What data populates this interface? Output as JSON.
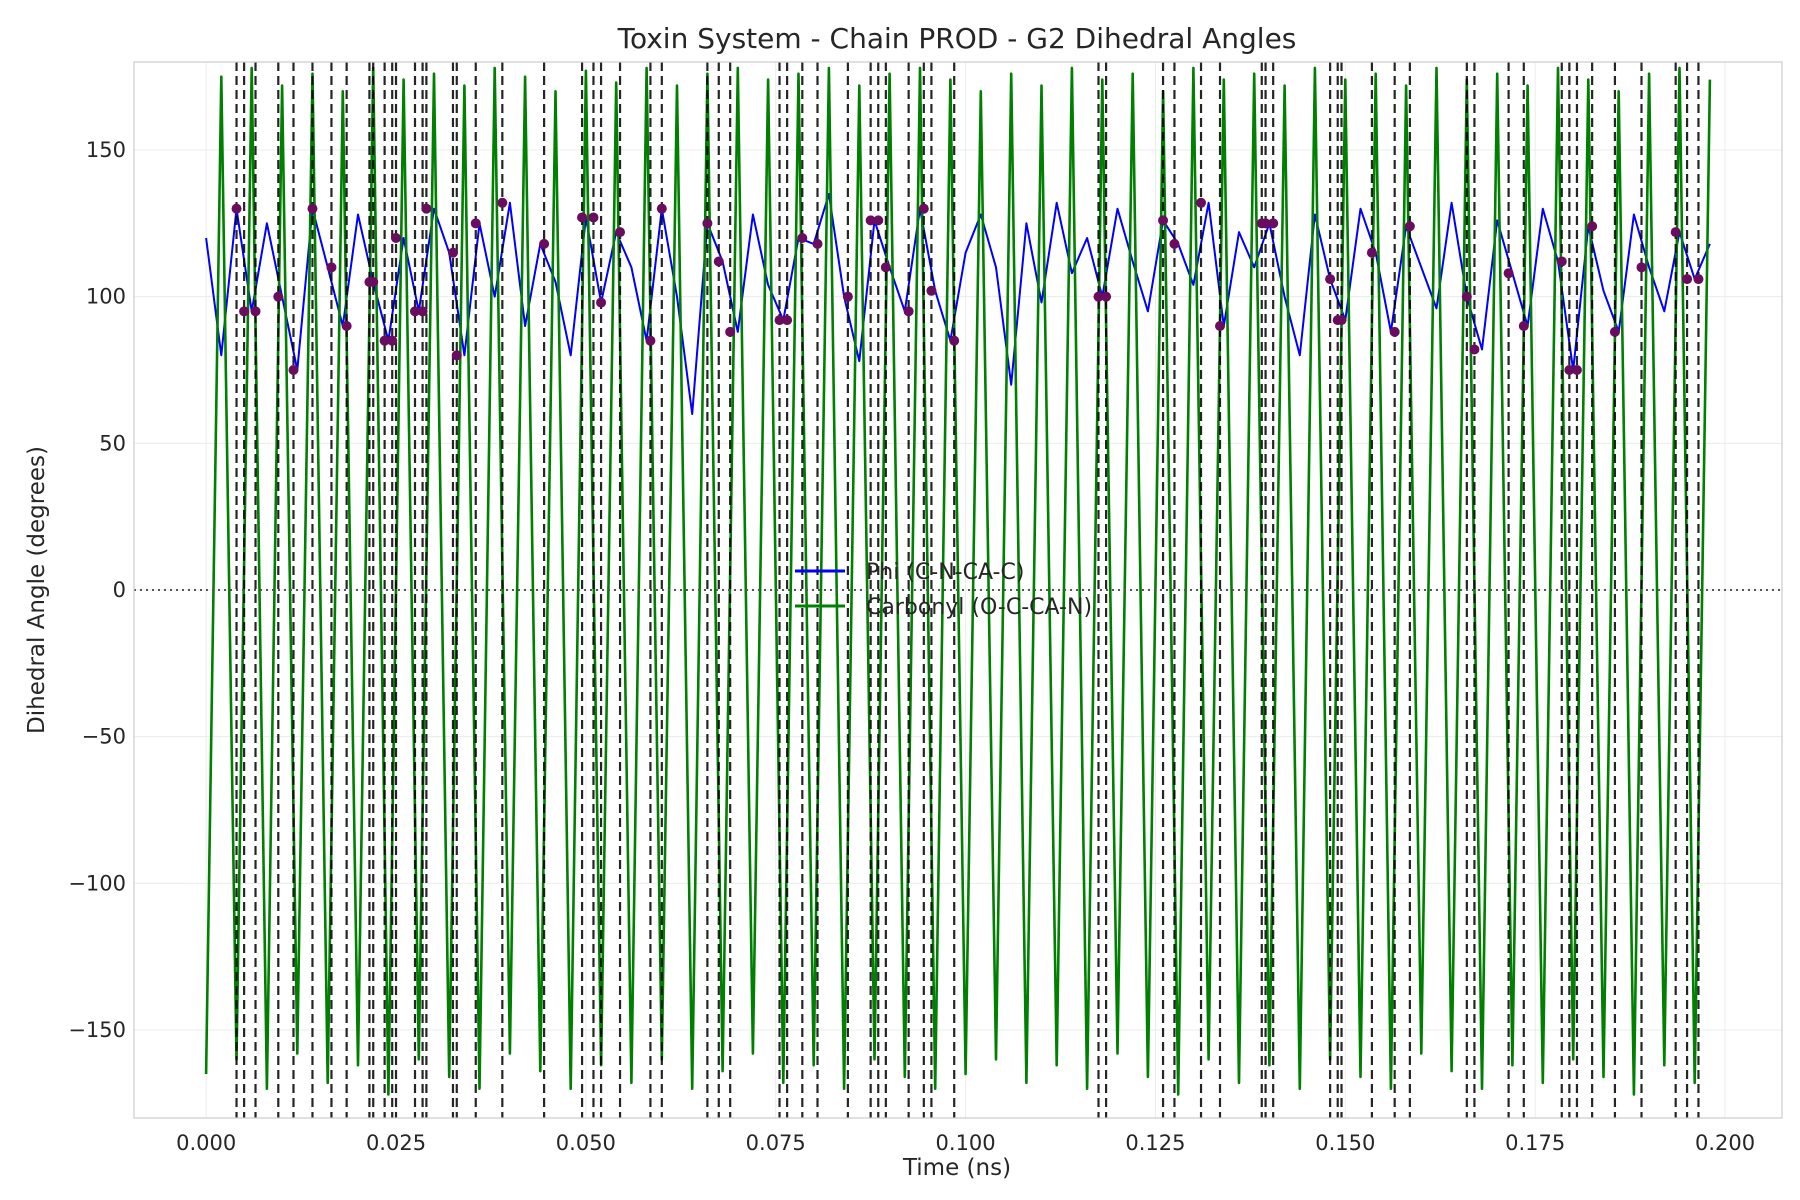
{
  "chart_data": {
    "type": "line",
    "title": "Toxin System - Chain PROD - G2 Dihedral Angles",
    "xlabel": "Time (ns)",
    "ylabel": "Dihedral Angle (degrees)",
    "xlim": [
      -0.0095,
      0.2075
    ],
    "ylim": [
      -180,
      180
    ],
    "xticks": [
      0.0,
      0.025,
      0.05,
      0.075,
      0.1,
      0.125,
      0.15,
      0.175,
      0.2
    ],
    "xtick_labels": [
      "0.000",
      "0.025",
      "0.050",
      "0.075",
      "0.100",
      "0.125",
      "0.150",
      "0.175",
      "0.200"
    ],
    "yticks": [
      -150,
      -100,
      -50,
      0,
      50,
      100,
      150
    ],
    "ytick_labels": [
      "−150",
      "−100",
      "−50",
      "0",
      "50",
      "100",
      "150"
    ],
    "grid": true,
    "legend_position": "center",
    "reference_line": {
      "y": 0,
      "style": "dotted",
      "color": "#555555"
    },
    "colors": {
      "phi": "#0000ff",
      "carbonyl": "#008000",
      "transitions": "#000000",
      "markers": "#6a0d5e"
    },
    "series": [
      {
        "name": "Phi (C-N-CA-C)",
        "color": "#0000ff",
        "x": [
          0.0,
          0.002,
          0.004,
          0.006,
          0.008,
          0.01,
          0.012,
          0.014,
          0.016,
          0.018,
          0.02,
          0.022,
          0.024,
          0.026,
          0.028,
          0.03,
          0.032,
          0.034,
          0.036,
          0.038,
          0.04,
          0.042,
          0.044,
          0.046,
          0.048,
          0.05,
          0.052,
          0.054,
          0.056,
          0.058,
          0.06,
          0.062,
          0.064,
          0.066,
          0.068,
          0.07,
          0.072,
          0.074,
          0.076,
          0.078,
          0.08,
          0.082,
          0.084,
          0.086,
          0.088,
          0.09,
          0.092,
          0.094,
          0.096,
          0.098,
          0.1,
          0.102,
          0.104,
          0.106,
          0.108,
          0.11,
          0.112,
          0.114,
          0.116,
          0.118,
          0.12,
          0.122,
          0.124,
          0.126,
          0.128,
          0.13,
          0.132,
          0.134,
          0.136,
          0.138,
          0.14,
          0.142,
          0.144,
          0.146,
          0.148,
          0.15,
          0.152,
          0.154,
          0.156,
          0.158,
          0.16,
          0.162,
          0.164,
          0.166,
          0.168,
          0.17,
          0.172,
          0.174,
          0.176,
          0.178,
          0.18,
          0.182,
          0.184,
          0.186,
          0.188,
          0.19,
          0.192,
          0.194,
          0.196,
          0.198
        ],
        "y": [
          120,
          80,
          130,
          95,
          125,
          100,
          75,
          130,
          110,
          90,
          128,
          105,
          85,
          120,
          95,
          130,
          115,
          80,
          125,
          100,
          132,
          90,
          118,
          105,
          80,
          127,
          98,
          122,
          110,
          85,
          130,
          100,
          60,
          125,
          112,
          88,
          128,
          104,
          92,
          120,
          118,
          135,
          100,
          78,
          126,
          110,
          95,
          130,
          102,
          85,
          115,
          128,
          110,
          70,
          125,
          98,
          132,
          108,
          120,
          100,
          130,
          112,
          95,
          126,
          118,
          104,
          132,
          90,
          122,
          110,
          125,
          100,
          80,
          128,
          106,
          92,
          130,
          115,
          88,
          124,
          110,
          96,
          132,
          100,
          82,
          126,
          108,
          90,
          130,
          112,
          75,
          124,
          102,
          88,
          128,
          110,
          95,
          122,
          106,
          118
        ]
      },
      {
        "name": "Carbonyl (O-C-CA-N)",
        "color": "#008000",
        "x": [
          0.0,
          0.002,
          0.004,
          0.006,
          0.008,
          0.01,
          0.012,
          0.014,
          0.016,
          0.018,
          0.02,
          0.022,
          0.024,
          0.026,
          0.028,
          0.03,
          0.032,
          0.034,
          0.036,
          0.038,
          0.04,
          0.042,
          0.044,
          0.046,
          0.048,
          0.05,
          0.052,
          0.054,
          0.056,
          0.058,
          0.06,
          0.062,
          0.064,
          0.066,
          0.068,
          0.07,
          0.072,
          0.074,
          0.076,
          0.078,
          0.08,
          0.082,
          0.084,
          0.086,
          0.088,
          0.09,
          0.092,
          0.094,
          0.096,
          0.098,
          0.1,
          0.102,
          0.104,
          0.106,
          0.108,
          0.11,
          0.112,
          0.114,
          0.116,
          0.118,
          0.12,
          0.122,
          0.124,
          0.126,
          0.128,
          0.13,
          0.132,
          0.134,
          0.136,
          0.138,
          0.14,
          0.142,
          0.144,
          0.146,
          0.148,
          0.15,
          0.152,
          0.154,
          0.156,
          0.158,
          0.16,
          0.162,
          0.164,
          0.166,
          0.168,
          0.17,
          0.172,
          0.174,
          0.176,
          0.178,
          0.18,
          0.182,
          0.184,
          0.186,
          0.188,
          0.19,
          0.192,
          0.194,
          0.196,
          0.198
        ],
        "y": [
          -165,
          175,
          -160,
          178,
          -170,
          172,
          -158,
          176,
          -168,
          170,
          -162,
          178,
          -172,
          174,
          -160,
          176,
          -166,
          172,
          -170,
          178,
          -158,
          175,
          -164,
          170,
          -170,
          177,
          -162,
          173,
          -168,
          178,
          -160,
          172,
          -170,
          176,
          -164,
          178,
          -158,
          174,
          -168,
          176,
          -162,
          178,
          -170,
          172,
          -160,
          176,
          -166,
          178,
          -170,
          174,
          -165,
          170,
          -160,
          176,
          -168,
          172,
          -162,
          178,
          -170,
          174,
          -158,
          176,
          -166,
          170,
          -172,
          178,
          -160,
          174,
          -168,
          176,
          -162,
          172,
          -170,
          178,
          -160,
          174,
          -166,
          176,
          -170,
          172,
          -158,
          178,
          -164,
          174,
          -170,
          176,
          -162,
          172,
          -168,
          178,
          -160,
          174,
          -166,
          170,
          -172,
          176,
          -162,
          178,
          -168,
          174
        ]
      }
    ],
    "transition_lines_x": [
      0.004,
      0.005,
      0.0065,
      0.0095,
      0.0115,
      0.014,
      0.0165,
      0.0185,
      0.0215,
      0.022,
      0.0235,
      0.0245,
      0.025,
      0.0275,
      0.0285,
      0.029,
      0.0325,
      0.033,
      0.0355,
      0.039,
      0.0445,
      0.0495,
      0.051,
      0.052,
      0.0545,
      0.0585,
      0.06,
      0.066,
      0.0675,
      0.069,
      0.0755,
      0.0765,
      0.0785,
      0.0805,
      0.0845,
      0.0875,
      0.0885,
      0.0895,
      0.0925,
      0.0945,
      0.0955,
      0.0985,
      0.1175,
      0.1185,
      0.126,
      0.1275,
      0.131,
      0.1335,
      0.139,
      0.1395,
      0.1405,
      0.148,
      0.149,
      0.1495,
      0.1535,
      0.1565,
      0.1585,
      0.166,
      0.167,
      0.1715,
      0.1735,
      0.1785,
      0.1795,
      0.1805,
      0.1825,
      0.1855,
      0.189,
      0.1935,
      0.195,
      0.1965
    ]
  }
}
